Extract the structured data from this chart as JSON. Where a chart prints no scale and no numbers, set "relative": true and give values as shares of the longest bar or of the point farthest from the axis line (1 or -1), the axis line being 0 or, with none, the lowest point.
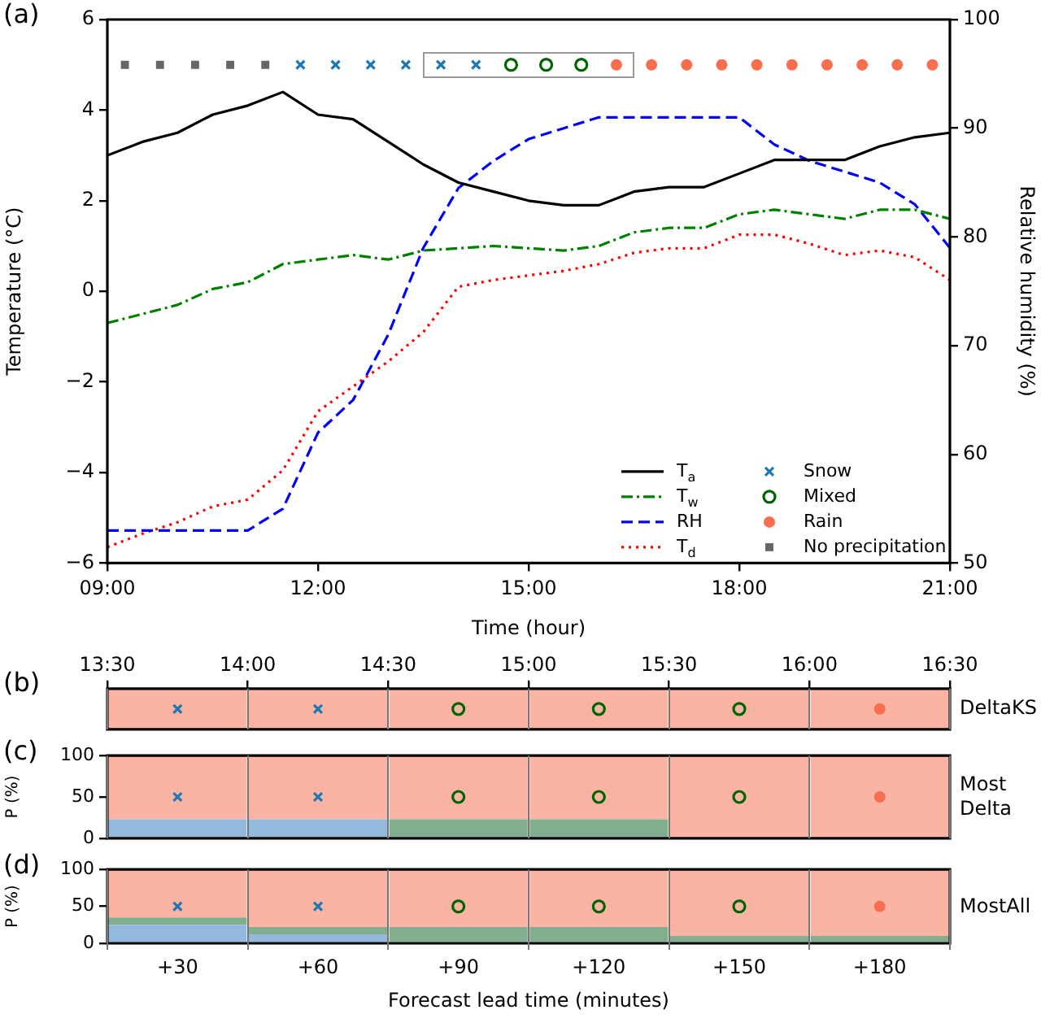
{
  "chart_data": [
    {
      "type": "line",
      "title": "(a)",
      "xlabel": "Time (hour)",
      "ylabel": "Temperature (°C)",
      "y2label": "Relative humidity (%)",
      "x": [
        9,
        9.5,
        10,
        10.5,
        11,
        11.5,
        12,
        12.5,
        13,
        13.5,
        14,
        14.5,
        15,
        15.5,
        16,
        16.5,
        17,
        17.5,
        18,
        18.5,
        19,
        19.5,
        20,
        20.5,
        21
      ],
      "xlim": [
        9,
        21
      ],
      "xticks": [
        {
          "value": 9,
          "label": "09:00"
        },
        {
          "value": 12,
          "label": "12:00"
        },
        {
          "value": 15,
          "label": "15:00"
        },
        {
          "value": 18,
          "label": "18:00"
        },
        {
          "value": 21,
          "label": "21:00"
        }
      ],
      "ylim": [
        -6,
        6
      ],
      "yticks": [
        {
          "value": -6,
          "label": "−6"
        },
        {
          "value": -4,
          "label": "−4"
        },
        {
          "value": -2,
          "label": "−2"
        },
        0,
        2,
        4,
        6
      ],
      "y2lim": [
        50,
        100
      ],
      "y2ticks": [
        50,
        60,
        70,
        80,
        90,
        100
      ],
      "marker": "none",
      "legend": "bottom right",
      "series": [
        {
          "name": "T$_{a}$",
          "color": "#000000",
          "line_style": "solid",
          "values": [
            3.0,
            3.3,
            3.5,
            3.9,
            4.1,
            4.4,
            3.9,
            3.8,
            3.3,
            2.8,
            2.4,
            2.2,
            2.0,
            1.9,
            1.9,
            2.2,
            2.3,
            2.3,
            2.6,
            2.9,
            2.9,
            2.9,
            3.2,
            3.4,
            3.5
          ]
        },
        {
          "name": "T$_{w}$",
          "color": "#008000",
          "line_style": "dashdot",
          "values": [
            -0.7,
            -0.5,
            -0.3,
            0.05,
            0.2,
            0.6,
            0.7,
            0.8,
            0.7,
            0.9,
            0.95,
            1.0,
            0.95,
            0.9,
            1.0,
            1.3,
            1.4,
            1.4,
            1.7,
            1.8,
            1.7,
            1.6,
            1.8,
            1.8,
            1.6
          ]
        },
        {
          "name": "RH",
          "color": "#0000ff",
          "line_style": "dashed",
          "axis": "y2",
          "values": [
            53,
            53,
            53,
            53,
            53,
            55,
            62,
            65,
            71,
            79,
            84.5,
            87,
            89,
            90,
            91,
            91,
            91,
            91,
            91,
            88.5,
            87,
            86,
            85,
            83,
            79
          ]
        },
        {
          "name": "T$_{d}$",
          "color": "#ff0000",
          "line_style": "dotted",
          "values": [
            -5.65,
            -5.35,
            -5.1,
            -4.75,
            -4.6,
            -3.95,
            -2.65,
            -2.1,
            -1.55,
            -0.9,
            0.1,
            0.25,
            0.35,
            0.45,
            0.6,
            0.85,
            0.95,
            0.95,
            1.25,
            1.25,
            1.05,
            0.8,
            0.9,
            0.75,
            0.25
          ]
        },
        {
          "name": "Snow",
          "type": "scatter",
          "marker": "cross",
          "color": "#1f77b4",
          "x": [
            11.75,
            12.25,
            12.75,
            13.25,
            13.75,
            14.25
          ],
          "values": [
            5,
            5,
            5,
            5,
            5,
            5
          ]
        },
        {
          "name": "Mixed",
          "type": "scatter",
          "marker": "circle-open",
          "color": "#006400",
          "x": [
            14.75,
            15.25,
            15.75
          ],
          "values": [
            5,
            5,
            5
          ]
        },
        {
          "name": "Rain",
          "type": "scatter",
          "marker": "circle",
          "color": "#fa6e50",
          "x": [
            16.25,
            16.75,
            17.25,
            17.75,
            18.25,
            18.75,
            19.25,
            19.75,
            20.25,
            20.75
          ],
          "values": [
            5,
            5,
            5,
            5,
            5,
            5,
            5,
            5,
            5,
            5
          ]
        },
        {
          "name": "No precipitation",
          "type": "scatter",
          "marker": "square",
          "color": "#666666",
          "x": [
            9.25,
            9.75,
            10.25,
            10.75,
            11.25
          ],
          "values": [
            5,
            5,
            5,
            5,
            5
          ]
        }
      ]
    },
    {
      "type": "bar",
      "title": "(b)",
      "y2label": "DeltaKS",
      "relative": true,
      "tick_labels": false,
      "grid": "x",
      "categories": [
        "+30",
        "+60",
        "+90",
        "+120",
        "+150",
        "+180"
      ],
      "x2lim": [
        13.5,
        16.5
      ],
      "x2ticks": [
        {
          "value": 13.5,
          "label": "13:30"
        },
        {
          "value": 14,
          "label": "14:00"
        },
        {
          "value": 14.5,
          "label": "14:30"
        },
        {
          "value": 15,
          "label": "15:00"
        },
        {
          "value": 15.5,
          "label": "15:30"
        },
        {
          "value": 16,
          "label": "16:00"
        },
        {
          "value": 16.5,
          "label": "16:30"
        }
      ],
      "series": [
        {
          "color": "#fbb4a3",
          "values": [
            1,
            1,
            1,
            1,
            1,
            1
          ]
        },
        {
          "type": "scatter",
          "marker": "cross",
          "color": "#1f77b4",
          "x": [
            "+30",
            "+60"
          ],
          "values": [
            0.5,
            0.5
          ]
        },
        {
          "type": "scatter",
          "marker": "circle-open",
          "color": "#006400",
          "x": [
            "+90",
            "+120",
            "+150"
          ],
          "values": [
            0.5,
            0.5,
            0.5
          ]
        },
        {
          "type": "scatter",
          "marker": "circle",
          "color": "#fa6e50",
          "x": [
            "+180"
          ],
          "values": [
            0.5
          ]
        }
      ]
    },
    {
      "type": "bar",
      "title": "(c)",
      "ylabel": "P (%)",
      "y2label": "Most Delta",
      "stacked": true,
      "tick_labels": "y",
      "grid": "x",
      "categories": [
        "+30",
        "+60",
        "+90",
        "+120",
        "+150",
        "+180"
      ],
      "ylim": [
        0,
        100
      ],
      "yticks": [
        0,
        50,
        100
      ],
      "series": [
        {
          "color": "#93b9dd",
          "values": [
            23,
            23,
            0,
            0,
            0,
            0
          ]
        },
        {
          "color": "#80ae8f",
          "values": [
            0,
            0,
            23,
            23,
            0,
            0
          ]
        },
        {
          "color": "#fbb4a3",
          "values": [
            77,
            77,
            77,
            77,
            100,
            100
          ]
        },
        {
          "type": "scatter",
          "marker": "cross",
          "color": "#1f77b4",
          "x": [
            "+30",
            "+60"
          ],
          "values": [
            50,
            50
          ]
        },
        {
          "type": "scatter",
          "marker": "circle-open",
          "color": "#006400",
          "x": [
            "+90",
            "+120",
            "+150"
          ],
          "values": [
            50,
            50,
            50
          ]
        },
        {
          "type": "scatter",
          "marker": "circle",
          "color": "#fa6e50",
          "x": [
            "+180"
          ],
          "values": [
            50
          ]
        }
      ]
    },
    {
      "type": "bar",
      "title": "(d)",
      "ylabel": "P (%)",
      "y2label": "MostAll",
      "xlabel": "Forecast lead time (minutes)",
      "stacked": true,
      "grid": "x",
      "categories": [
        "+30",
        "+60",
        "+90",
        "+120",
        "+150",
        "+180"
      ],
      "ylim": [
        0,
        100
      ],
      "yticks": [
        0,
        50,
        100
      ],
      "series": [
        {
          "color": "#93b9dd",
          "values": [
            25,
            12,
            0,
            0,
            0,
            0
          ]
        },
        {
          "color": "#80ae8f",
          "values": [
            10,
            10,
            22,
            22,
            10,
            10
          ]
        },
        {
          "color": "#fbb4a3",
          "values": [
            65,
            78,
            78,
            78,
            90,
            90
          ]
        },
        {
          "type": "scatter",
          "marker": "cross",
          "color": "#1f77b4",
          "x": [
            "+30",
            "+60"
          ],
          "values": [
            50,
            50
          ]
        },
        {
          "type": "scatter",
          "marker": "circle-open",
          "color": "#006400",
          "x": [
            "+90",
            "+120",
            "+150"
          ],
          "values": [
            50,
            50,
            50
          ]
        },
        {
          "type": "scatter",
          "marker": "circle",
          "color": "#fa6e50",
          "x": [
            "+180"
          ],
          "values": [
            50
          ]
        }
      ]
    }
  ]
}
